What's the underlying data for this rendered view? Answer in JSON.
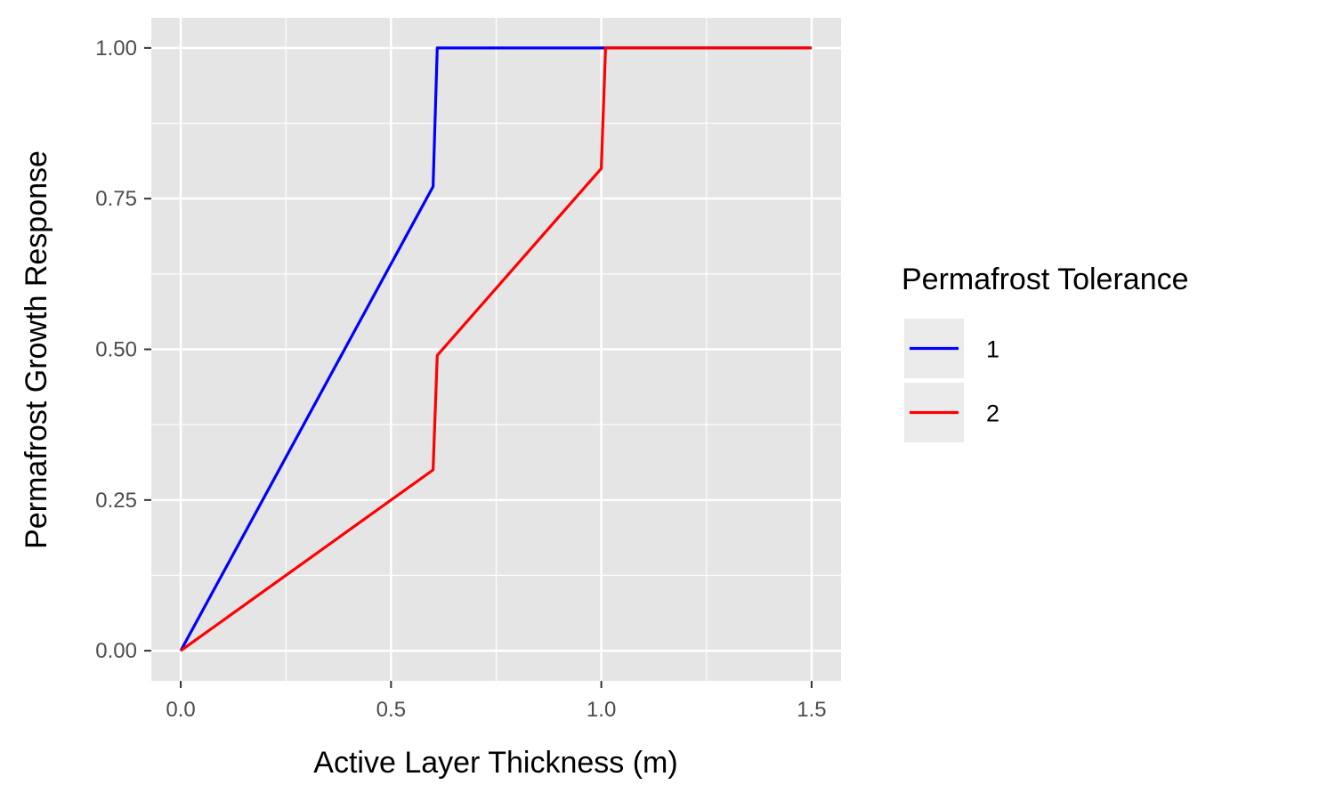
{
  "chart_data": {
    "type": "line",
    "title": "",
    "xlabel": "Active Layer Thickness (m)",
    "ylabel": "Permafrost Growth Response",
    "xlim": [
      -0.07,
      1.57
    ],
    "ylim": [
      -0.05,
      1.05
    ],
    "x_ticks": [
      0.0,
      0.5,
      1.0,
      1.5
    ],
    "x_tick_labels": [
      "0.0",
      "0.5",
      "1.0",
      "1.5"
    ],
    "y_ticks": [
      0.0,
      0.25,
      0.5,
      0.75,
      1.0
    ],
    "y_tick_labels": [
      "0.00",
      "0.25",
      "0.50",
      "0.75",
      "1.00"
    ],
    "grid": true,
    "legend": {
      "title": "Permafrost Tolerance",
      "placement": "right"
    },
    "series": [
      {
        "name": "1",
        "color": "#0000ff",
        "x": [
          0.0,
          0.6,
          0.61,
          1.5
        ],
        "y": [
          0.0,
          0.77,
          1.0,
          1.0
        ]
      },
      {
        "name": "2",
        "color": "#ff0000",
        "x": [
          0.0,
          0.6,
          0.61,
          1.0,
          1.01,
          1.5
        ],
        "y": [
          0.0,
          0.3,
          0.49,
          0.8,
          1.0,
          1.0
        ]
      }
    ]
  }
}
